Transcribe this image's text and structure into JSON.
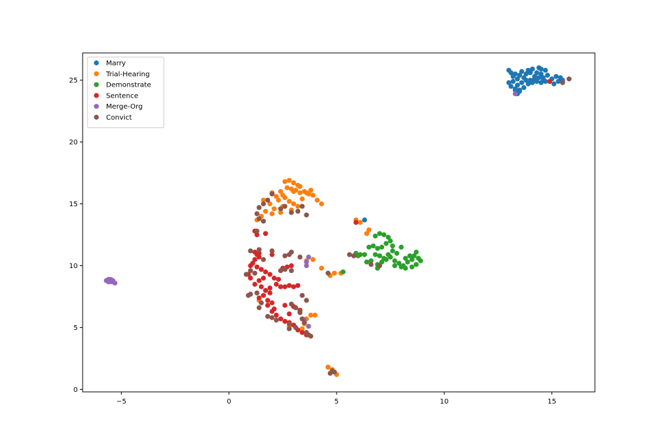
{
  "chart_data": {
    "type": "scatter",
    "title": "",
    "xlabel": "",
    "ylabel": "",
    "xlim": [
      -6.8,
      17.0
    ],
    "ylim": [
      -0.2,
      27.2
    ],
    "xticks": [
      -5,
      0,
      5,
      10,
      15
    ],
    "yticks": [
      0,
      5,
      10,
      15,
      20,
      25
    ],
    "xtick_labels": [
      "−5",
      "0",
      "5",
      "10",
      "15"
    ],
    "ytick_labels": [
      "0",
      "5",
      "10",
      "15",
      "20",
      "25"
    ],
    "grid": false,
    "legend_position": "top-left",
    "series": [
      {
        "name": "Marry",
        "color": "#1f77b4",
        "points": [
          [
            13.0,
            25.8
          ],
          [
            13.1,
            25.6
          ],
          [
            13.2,
            25.3
          ],
          [
            13.3,
            25.5
          ],
          [
            13.4,
            25.1
          ],
          [
            13.5,
            25.4
          ],
          [
            13.6,
            25.7
          ],
          [
            13.7,
            25.2
          ],
          [
            13.8,
            25.5
          ],
          [
            13.9,
            25.8
          ],
          [
            14.0,
            25.6
          ],
          [
            14.1,
            25.9
          ],
          [
            14.2,
            25.3
          ],
          [
            14.3,
            25.6
          ],
          [
            14.4,
            26.0
          ],
          [
            14.5,
            25.5
          ],
          [
            14.6,
            25.2
          ],
          [
            14.7,
            25.8
          ],
          [
            14.8,
            25.4
          ],
          [
            14.9,
            24.9
          ],
          [
            15.0,
            25.1
          ],
          [
            15.1,
            24.7
          ],
          [
            15.2,
            25.3
          ],
          [
            15.3,
            24.9
          ],
          [
            15.4,
            25.2
          ],
          [
            15.5,
            25.0
          ],
          [
            13.0,
            24.8
          ],
          [
            13.1,
            24.5
          ],
          [
            13.2,
            24.9
          ],
          [
            13.3,
            24.3
          ],
          [
            13.4,
            24.6
          ],
          [
            13.5,
            24.2
          ],
          [
            13.6,
            24.8
          ],
          [
            13.7,
            24.4
          ],
          [
            13.8,
            25.0
          ],
          [
            13.9,
            24.7
          ],
          [
            14.0,
            25.0
          ],
          [
            14.1,
            24.8
          ],
          [
            14.2,
            25.1
          ],
          [
            14.3,
            24.9
          ],
          [
            14.4,
            25.2
          ],
          [
            14.5,
            24.8
          ],
          [
            14.6,
            25.0
          ],
          [
            14.7,
            24.9
          ],
          [
            13.4,
            23.9
          ],
          [
            13.5,
            24.1
          ],
          [
            13.3,
            24.2
          ],
          [
            14.5,
            25.9
          ],
          [
            6.3,
            13.7
          ],
          [
            4.6,
            1.8
          ]
        ]
      },
      {
        "name": "Trial-Hearing",
        "color": "#ff7f0e",
        "points": [
          [
            2.6,
            16.8
          ],
          [
            2.8,
            16.9
          ],
          [
            3.0,
            16.7
          ],
          [
            3.2,
            16.5
          ],
          [
            2.7,
            16.3
          ],
          [
            2.9,
            16.2
          ],
          [
            3.1,
            16.1
          ],
          [
            3.3,
            15.9
          ],
          [
            3.5,
            16.0
          ],
          [
            3.7,
            15.8
          ],
          [
            3.9,
            15.7
          ],
          [
            2.4,
            16.0
          ],
          [
            2.5,
            15.7
          ],
          [
            2.2,
            15.6
          ],
          [
            2.0,
            15.9
          ],
          [
            2.3,
            15.3
          ],
          [
            2.6,
            15.5
          ],
          [
            2.8,
            15.2
          ],
          [
            3.0,
            15.0
          ],
          [
            3.2,
            14.8
          ],
          [
            2.1,
            14.6
          ],
          [
            1.9,
            15.0
          ],
          [
            1.7,
            14.4
          ],
          [
            1.5,
            14.0
          ],
          [
            1.3,
            13.7
          ],
          [
            2.0,
            14.2
          ],
          [
            2.5,
            14.8
          ],
          [
            2.9,
            14.5
          ],
          [
            3.4,
            15.4
          ],
          [
            3.6,
            15.9
          ],
          [
            3.8,
            16.1
          ],
          [
            4.1,
            15.3
          ],
          [
            4.3,
            15.0
          ],
          [
            1.6,
            15.3
          ],
          [
            3.0,
            16.0
          ],
          [
            3.3,
            16.4
          ],
          [
            2.4,
            14.3
          ],
          [
            5.9,
            13.7
          ],
          [
            6.1,
            13.5
          ],
          [
            6.5,
            12.9
          ],
          [
            6.4,
            12.6
          ],
          [
            3.6,
            10.4
          ],
          [
            3.9,
            10.5
          ],
          [
            4.3,
            9.8
          ],
          [
            4.7,
            9.2
          ],
          [
            4.9,
            9.4
          ],
          [
            5.2,
            9.4
          ],
          [
            3.8,
            6.0
          ],
          [
            3.6,
            5.7
          ],
          [
            3.4,
            4.9
          ],
          [
            1.4,
            7.2
          ],
          [
            2.8,
            5.1
          ],
          [
            4.0,
            6.0
          ],
          [
            3.5,
            5.3
          ],
          [
            5.0,
            1.2
          ],
          [
            4.8,
            1.6
          ],
          [
            4.6,
            1.8
          ]
        ]
      },
      {
        "name": "Demonstrate",
        "color": "#2ca02c",
        "points": [
          [
            6.8,
            12.4
          ],
          [
            7.0,
            12.6
          ],
          [
            7.2,
            12.5
          ],
          [
            7.4,
            12.3
          ],
          [
            7.5,
            12.0
          ],
          [
            7.3,
            11.8
          ],
          [
            7.1,
            11.5
          ],
          [
            6.9,
            11.4
          ],
          [
            6.7,
            11.6
          ],
          [
            6.5,
            11.5
          ],
          [
            7.6,
            11.2
          ],
          [
            7.8,
            11.0
          ],
          [
            7.4,
            10.9
          ],
          [
            7.2,
            10.6
          ],
          [
            7.0,
            10.8
          ],
          [
            6.8,
            10.9
          ],
          [
            6.6,
            10.4
          ],
          [
            6.9,
            10.1
          ],
          [
            7.1,
            10.3
          ],
          [
            7.3,
            10.5
          ],
          [
            7.5,
            10.7
          ],
          [
            7.7,
            10.4
          ],
          [
            7.9,
            10.2
          ],
          [
            8.1,
            10.0
          ],
          [
            8.3,
            10.3
          ],
          [
            8.5,
            10.5
          ],
          [
            8.6,
            10.8
          ],
          [
            8.7,
            11.1
          ],
          [
            8.8,
            10.6
          ],
          [
            8.9,
            10.4
          ],
          [
            8.7,
            10.1
          ],
          [
            8.5,
            9.9
          ],
          [
            8.2,
            9.8
          ],
          [
            8.0,
            9.9
          ],
          [
            7.7,
            10.0
          ],
          [
            6.9,
            9.8
          ],
          [
            6.4,
            10.3
          ],
          [
            6.3,
            10.9
          ],
          [
            6.1,
            10.9
          ],
          [
            5.9,
            11.0
          ],
          [
            8.0,
            11.5
          ],
          [
            8.2,
            10.6
          ],
          [
            5.3,
            9.5
          ],
          [
            6.0,
            10.8
          ],
          [
            7.6,
            11.6
          ],
          [
            8.4,
            10.8
          ]
        ]
      },
      {
        "name": "Sentence",
        "color": "#d62728",
        "points": [
          [
            1.2,
            11.1
          ],
          [
            1.3,
            10.9
          ],
          [
            1.4,
            10.7
          ],
          [
            1.2,
            10.5
          ],
          [
            1.1,
            10.2
          ],
          [
            1.3,
            9.9
          ],
          [
            1.5,
            9.7
          ],
          [
            1.7,
            9.5
          ],
          [
            1.9,
            9.3
          ],
          [
            1.6,
            9.0
          ],
          [
            1.4,
            8.8
          ],
          [
            1.2,
            8.5
          ],
          [
            1.5,
            8.3
          ],
          [
            1.7,
            8.0
          ],
          [
            1.9,
            7.8
          ],
          [
            1.6,
            7.6
          ],
          [
            1.4,
            7.4
          ],
          [
            1.8,
            7.2
          ],
          [
            2.0,
            7.0
          ],
          [
            2.2,
            8.5
          ],
          [
            2.4,
            8.3
          ],
          [
            2.6,
            8.3
          ],
          [
            2.8,
            8.4
          ],
          [
            3.0,
            8.3
          ],
          [
            3.2,
            8.4
          ],
          [
            1.8,
            6.8
          ],
          [
            2.0,
            6.3
          ],
          [
            2.2,
            6.0
          ],
          [
            2.4,
            5.7
          ],
          [
            2.6,
            5.5
          ],
          [
            2.8,
            5.4
          ],
          [
            3.0,
            5.2
          ],
          [
            3.2,
            4.8
          ],
          [
            3.4,
            4.6
          ],
          [
            3.6,
            4.4
          ],
          [
            3.0,
            6.7
          ],
          [
            3.3,
            6.4
          ],
          [
            2.7,
            9.9
          ],
          [
            2.5,
            9.8
          ],
          [
            2.9,
            10.0
          ],
          [
            1.0,
            9.0
          ],
          [
            0.9,
            9.3
          ],
          [
            1.0,
            10.0
          ],
          [
            1.4,
            11.0
          ],
          [
            1.2,
            12.8
          ],
          [
            1.3,
            12.5
          ],
          [
            1.7,
            12.6
          ],
          [
            2.1,
            9.0
          ],
          [
            2.3,
            8.9
          ],
          [
            1.9,
            8.2
          ],
          [
            2.1,
            6.5
          ],
          [
            2.6,
            6.8
          ],
          [
            2.8,
            6.1
          ],
          [
            2.0,
            10.9
          ],
          [
            5.9,
            13.5
          ],
          [
            14.9,
            24.9
          ]
        ]
      },
      {
        "name": "Merge-Org",
        "color": "#9467bd",
        "points": [
          [
            -5.6,
            8.8
          ],
          [
            -5.5,
            8.7
          ],
          [
            -5.7,
            8.8
          ],
          [
            -5.4,
            8.7
          ],
          [
            -5.6,
            8.9
          ],
          [
            -5.5,
            8.8
          ],
          [
            -5.3,
            8.6
          ],
          [
            -5.6,
            8.7
          ],
          [
            -5.5,
            8.9
          ],
          [
            -5.4,
            8.8
          ],
          [
            3.7,
            10.7
          ],
          [
            3.6,
            10.0
          ],
          [
            3.6,
            10.3
          ],
          [
            3.7,
            5.1
          ],
          [
            3.5,
            5.6
          ],
          [
            13.3,
            23.9
          ]
        ]
      },
      {
        "name": "Convict",
        "color": "#8c564b",
        "points": [
          [
            2.0,
            15.8
          ],
          [
            1.8,
            15.3
          ],
          [
            1.6,
            15.0
          ],
          [
            1.4,
            14.7
          ],
          [
            1.3,
            14.2
          ],
          [
            1.4,
            13.8
          ],
          [
            1.6,
            13.6
          ],
          [
            1.3,
            12.8
          ],
          [
            2.4,
            14.6
          ],
          [
            2.6,
            14.8
          ],
          [
            3.4,
            14.8
          ],
          [
            3.2,
            14.4
          ],
          [
            3.6,
            14.1
          ],
          [
            2.9,
            14.3
          ],
          [
            1.0,
            11.2
          ],
          [
            1.4,
            11.3
          ],
          [
            2.0,
            11.2
          ],
          [
            2.6,
            10.8
          ],
          [
            2.8,
            10.9
          ],
          [
            3.3,
            10.7
          ],
          [
            1.6,
            10.5
          ],
          [
            0.8,
            9.3
          ],
          [
            1.0,
            9.6
          ],
          [
            1.2,
            9.4
          ],
          [
            2.4,
            9.6
          ],
          [
            2.6,
            9.7
          ],
          [
            2.9,
            9.6
          ],
          [
            1.0,
            7.7
          ],
          [
            0.9,
            7.6
          ],
          [
            1.3,
            7.8
          ],
          [
            1.5,
            7.0
          ],
          [
            1.4,
            6.6
          ],
          [
            2.0,
            5.8
          ],
          [
            1.8,
            5.9
          ],
          [
            2.2,
            5.6
          ],
          [
            2.8,
            5.3
          ],
          [
            2.9,
            6.9
          ],
          [
            3.1,
            6.6
          ],
          [
            3.3,
            6.2
          ],
          [
            3.4,
            5.7
          ],
          [
            3.5,
            5.4
          ],
          [
            3.6,
            4.6
          ],
          [
            3.7,
            4.4
          ],
          [
            3.8,
            4.3
          ],
          [
            2.8,
            4.9
          ],
          [
            3.1,
            5.0
          ],
          [
            3.4,
            7.6
          ],
          [
            3.6,
            7.2
          ],
          [
            4.6,
            9.4
          ],
          [
            5.6,
            10.9
          ],
          [
            5.8,
            10.8
          ],
          [
            6.6,
            10.1
          ],
          [
            7.0,
            10.0
          ],
          [
            4.7,
            1.3
          ],
          [
            4.9,
            1.4
          ],
          [
            4.8,
            1.5
          ],
          [
            15.5,
            24.8
          ],
          [
            15.8,
            25.1
          ],
          [
            2.9,
            11.1
          ],
          [
            3.3,
            6.3
          ]
        ]
      }
    ]
  }
}
